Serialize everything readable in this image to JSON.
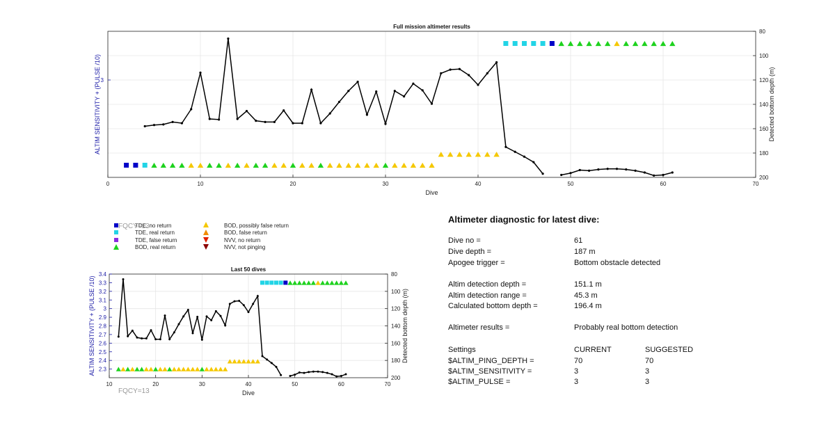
{
  "chart_data": [
    {
      "type": "line",
      "title": "Full mission altimeter results",
      "xlabel": "Dive",
      "ylabel_left": "ALTIM SENSITIVITY + (PULSE /10)",
      "ylabel_right": "Detected bottom depth (m)",
      "xlim": [
        0,
        70
      ],
      "x_ticks": [
        0,
        10,
        20,
        30,
        40,
        50,
        60,
        70
      ],
      "right_ylim": [
        80,
        200
      ],
      "right_ticks": [
        80,
        100,
        120,
        140,
        160,
        180,
        200
      ],
      "right_inverted": true,
      "left_ticks": [
        3
      ],
      "left_tick_depth": 120,
      "grid": true,
      "depth_series": [
        {
          "x": [
            4,
            5,
            6,
            7,
            8,
            9,
            10,
            11,
            12,
            13,
            14,
            15,
            16,
            17,
            18,
            19,
            20,
            21,
            22,
            23,
            24,
            25,
            26,
            27,
            28,
            29,
            30,
            31,
            32,
            33,
            34,
            35,
            36,
            37,
            38,
            39,
            40,
            41,
            42,
            43,
            44,
            45,
            46,
            47
          ],
          "y": [
            158,
            157,
            156.5,
            154.5,
            155.5,
            144,
            114,
            152,
            152.5,
            86,
            152,
            145.5,
            153.5,
            154.5,
            154.5,
            145,
            155.5,
            155.5,
            128,
            155.5,
            147.5,
            138,
            129,
            121.5,
            148.5,
            129.5,
            156,
            129,
            133.5,
            123,
            128.5,
            139.5,
            114.5,
            111.5,
            111,
            116,
            124,
            114.5,
            105.5,
            175,
            179,
            183,
            187.5,
            197
          ]
        },
        {
          "x": [
            49,
            50,
            51,
            52,
            53,
            54,
            55,
            56,
            57,
            58,
            59,
            60,
            61
          ],
          "y": [
            198,
            196.5,
            194,
            194.5,
            193.5,
            193,
            193,
            193.5,
            194.5,
            196,
            198.5,
            198,
            196
          ]
        }
      ],
      "markers": [
        {
          "x": 2,
          "type": "tde_no_return",
          "depth": 190
        },
        {
          "x": 3,
          "type": "tde_no_return",
          "depth": 190
        },
        {
          "x": 4,
          "type": "tde_real_return",
          "depth": 190
        },
        {
          "x": 5,
          "type": "bod_real_return",
          "depth": 190
        },
        {
          "x": 6,
          "type": "bod_real_return",
          "depth": 190
        },
        {
          "x": 7,
          "type": "bod_real_return",
          "depth": 190
        },
        {
          "x": 8,
          "type": "bod_real_return",
          "depth": 190
        },
        {
          "x": 9,
          "type": "bod_possibly_false",
          "depth": 190
        },
        {
          "x": 10,
          "type": "bod_possibly_false",
          "depth": 190
        },
        {
          "x": 11,
          "type": "bod_real_return",
          "depth": 190
        },
        {
          "x": 12,
          "type": "bod_real_return",
          "depth": 190
        },
        {
          "x": 13,
          "type": "bod_possibly_false",
          "depth": 190
        },
        {
          "x": 14,
          "type": "bod_real_return",
          "depth": 190
        },
        {
          "x": 15,
          "type": "bod_possibly_false",
          "depth": 190
        },
        {
          "x": 16,
          "type": "bod_real_return",
          "depth": 190
        },
        {
          "x": 17,
          "type": "bod_real_return",
          "depth": 190
        },
        {
          "x": 18,
          "type": "bod_possibly_false",
          "depth": 190
        },
        {
          "x": 19,
          "type": "bod_possibly_false",
          "depth": 190
        },
        {
          "x": 20,
          "type": "bod_real_return",
          "depth": 190
        },
        {
          "x": 21,
          "type": "bod_possibly_false",
          "depth": 190
        },
        {
          "x": 22,
          "type": "bod_possibly_false",
          "depth": 190
        },
        {
          "x": 23,
          "type": "bod_real_return",
          "depth": 190
        },
        {
          "x": 24,
          "type": "bod_possibly_false",
          "depth": 190
        },
        {
          "x": 25,
          "type": "bod_possibly_false",
          "depth": 190
        },
        {
          "x": 26,
          "type": "bod_possibly_false",
          "depth": 190
        },
        {
          "x": 27,
          "type": "bod_possibly_false",
          "depth": 190
        },
        {
          "x": 28,
          "type": "bod_possibly_false",
          "depth": 190
        },
        {
          "x": 29,
          "type": "bod_possibly_false",
          "depth": 190
        },
        {
          "x": 30,
          "type": "bod_real_return",
          "depth": 190
        },
        {
          "x": 31,
          "type": "bod_possibly_false",
          "depth": 190
        },
        {
          "x": 32,
          "type": "bod_possibly_false",
          "depth": 190
        },
        {
          "x": 33,
          "type": "bod_possibly_false",
          "depth": 190
        },
        {
          "x": 34,
          "type": "bod_possibly_false",
          "depth": 190
        },
        {
          "x": 35,
          "type": "bod_possibly_false",
          "depth": 190
        },
        {
          "x": 36,
          "type": "bod_possibly_false",
          "depth": 181
        },
        {
          "x": 37,
          "type": "bod_possibly_false",
          "depth": 181
        },
        {
          "x": 38,
          "type": "bod_possibly_false",
          "depth": 181
        },
        {
          "x": 39,
          "type": "bod_possibly_false",
          "depth": 181
        },
        {
          "x": 40,
          "type": "bod_possibly_false",
          "depth": 181
        },
        {
          "x": 41,
          "type": "bod_possibly_false",
          "depth": 181
        },
        {
          "x": 42,
          "type": "bod_possibly_false",
          "depth": 181
        },
        {
          "x": 43,
          "type": "tde_real_return",
          "depth": 90
        },
        {
          "x": 44,
          "type": "tde_real_return",
          "depth": 90
        },
        {
          "x": 45,
          "type": "tde_real_return",
          "depth": 90
        },
        {
          "x": 46,
          "type": "tde_real_return",
          "depth": 90
        },
        {
          "x": 47,
          "type": "tde_real_return",
          "depth": 90
        },
        {
          "x": 48,
          "type": "tde_no_return",
          "depth": 90
        },
        {
          "x": 49,
          "type": "bod_real_return",
          "depth": 90
        },
        {
          "x": 50,
          "type": "bod_real_return",
          "depth": 90
        },
        {
          "x": 51,
          "type": "bod_real_return",
          "depth": 90
        },
        {
          "x": 52,
          "type": "bod_real_return",
          "depth": 90
        },
        {
          "x": 53,
          "type": "bod_real_return",
          "depth": 90
        },
        {
          "x": 54,
          "type": "bod_real_return",
          "depth": 90
        },
        {
          "x": 55,
          "type": "bod_possibly_false",
          "depth": 90
        },
        {
          "x": 56,
          "type": "bod_real_return",
          "depth": 90
        },
        {
          "x": 57,
          "type": "bod_real_return",
          "depth": 90
        },
        {
          "x": 58,
          "type": "bod_real_return",
          "depth": 90
        },
        {
          "x": 59,
          "type": "bod_real_return",
          "depth": 90
        },
        {
          "x": 60,
          "type": "bod_real_return",
          "depth": 90
        },
        {
          "x": 61,
          "type": "bod_real_return",
          "depth": 90
        }
      ]
    },
    {
      "type": "line",
      "title": "Last 50 dives",
      "xlabel": "Dive",
      "ylabel_left": "ALTIM SENSITIVITY + (PULSE /10)",
      "ylabel_right": "Detected bottom depth (m)",
      "xlim": [
        10,
        70
      ],
      "x_ticks": [
        10,
        20,
        30,
        40,
        50,
        60,
        70
      ],
      "left_ylim": [
        2.2,
        3.4
      ],
      "left_ticks": [
        2.3,
        2.4,
        2.5,
        2.6,
        2.7,
        2.8,
        2.9,
        3,
        3.1,
        3.2,
        3.3,
        3.4
      ],
      "right_ylim": [
        80,
        200
      ],
      "right_ticks": [
        80,
        100,
        120,
        140,
        160,
        180,
        200
      ],
      "right_inverted": true,
      "grid": true,
      "x_from": 12
    }
  ],
  "legend": {
    "items": [
      {
        "label": "TDE, no return",
        "symbol": "square",
        "color": "#0000c8"
      },
      {
        "label": "TDE, real return",
        "symbol": "square",
        "color": "#22d4e6"
      },
      {
        "label": "TDE, false return",
        "symbol": "square",
        "color": "#8a2be2"
      },
      {
        "label": "BOD, real return",
        "symbol": "triangle-up",
        "color": "#1ed21e"
      },
      {
        "label": "BOD, possibly false return",
        "symbol": "triangle-up",
        "color": "#f5c800"
      },
      {
        "label": "BOD, false return",
        "symbol": "triangle-up",
        "color": "#f08c00"
      },
      {
        "label": "NVV, no return",
        "symbol": "triangle-down",
        "color": "#e02000"
      },
      {
        "label": "NVV, not pinging",
        "symbol": "triangle-down",
        "color": "#8b0000"
      }
    ]
  },
  "fqcy_label": "FQCY=13",
  "diagnostic": {
    "title": "Altimeter diagnostic for latest dive:",
    "rows": [
      {
        "label": "Dive no =",
        "value": "61"
      },
      {
        "label": "Dive depth =",
        "value": "187 m"
      },
      {
        "label": "Apogee trigger =",
        "value": "Bottom obstacle detected"
      },
      {
        "label": "Altim detection depth =",
        "value": "151.1 m"
      },
      {
        "label": "Altim detection range =",
        "value": "45.3 m"
      },
      {
        "label": "Calculated bottom depth =",
        "value": "196.4 m"
      },
      {
        "label": "Altimeter results =",
        "value": "Probably real bottom detection"
      }
    ],
    "settings_header": {
      "label": "Settings",
      "current": "CURRENT",
      "suggested": "SUGGESTED"
    },
    "settings": [
      {
        "label": "$ALTIM_PING_DEPTH =",
        "current": "70",
        "suggested": "70"
      },
      {
        "label": "$ALTIM_SENSITIVITY =",
        "current": "3",
        "suggested": "3"
      },
      {
        "label": "$ALTIM_PULSE =",
        "current": "3",
        "suggested": "3"
      }
    ]
  },
  "colors": {
    "left_axis": "#1a1aa6",
    "line": "#000000",
    "grid": "#e6e6e6",
    "ghost_text": "#9a9a9a"
  }
}
